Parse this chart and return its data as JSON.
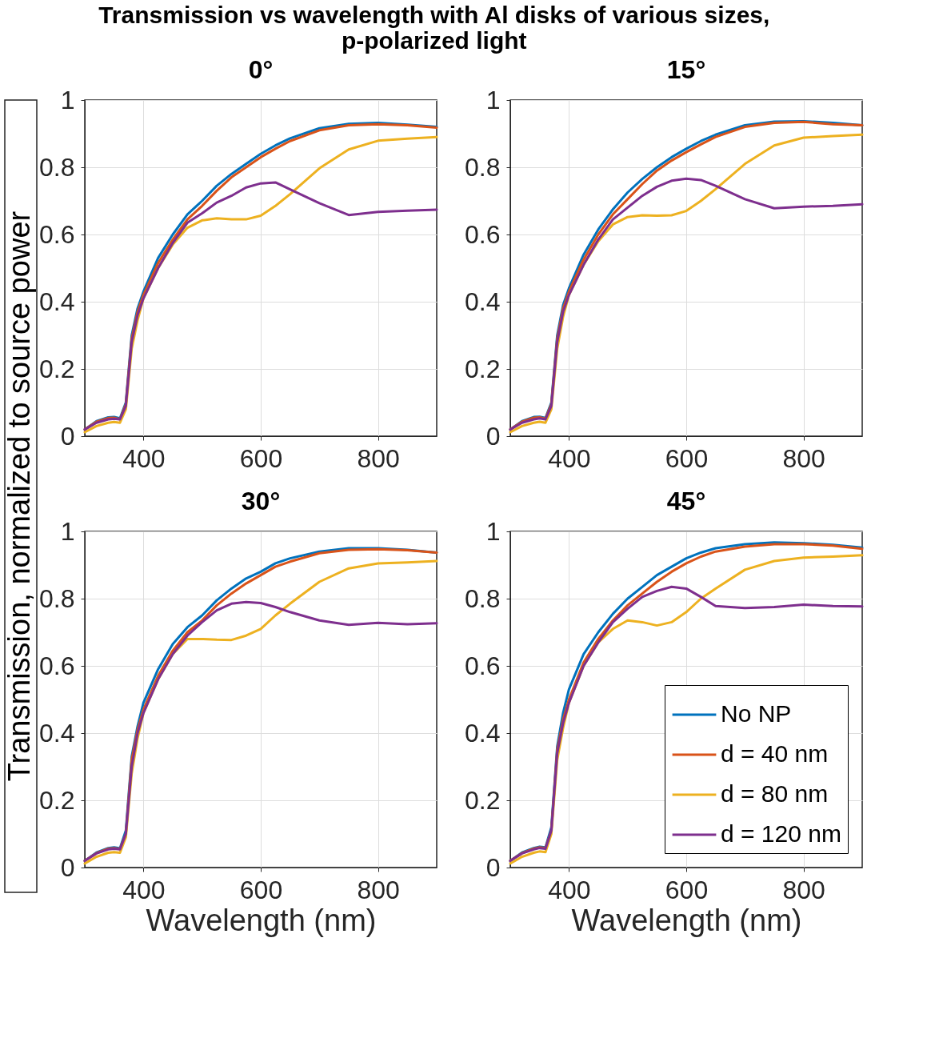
{
  "chart_data": [
    {
      "type": "line",
      "title": "0°",
      "annotations": [
        "Transmission vs wavelength with Al disks of various sizes, p-polarized light"
      ],
      "ylabel": "Transmission, normalized to source power",
      "xlim": [
        300,
        900
      ],
      "xticks": [
        400,
        600,
        800
      ],
      "ylim": [
        0,
        1
      ],
      "yticks": [
        0,
        0.2,
        0.4,
        0.6,
        0.8,
        1
      ],
      "grid": true,
      "x": [
        300,
        320,
        340,
        350,
        360,
        370,
        380,
        390,
        400,
        425,
        450,
        475,
        500,
        525,
        550,
        575,
        600,
        625,
        650,
        700,
        750,
        800,
        850,
        900
      ],
      "series": [
        {
          "color": "#0072bd",
          "values": [
            0.02,
            0.045,
            0.056,
            0.057,
            0.053,
            0.1,
            0.3,
            0.38,
            0.43,
            0.53,
            0.6,
            0.66,
            0.7,
            0.745,
            0.78,
            0.81,
            0.84,
            0.865,
            0.886,
            0.916,
            0.929,
            0.932,
            0.927,
            0.92
          ]
        },
        {
          "color": "#d95319",
          "values": [
            0.02,
            0.043,
            0.054,
            0.055,
            0.05,
            0.095,
            0.29,
            0.37,
            0.42,
            0.515,
            0.585,
            0.645,
            0.685,
            0.73,
            0.77,
            0.8,
            0.83,
            0.855,
            0.878,
            0.91,
            0.925,
            0.928,
            0.925,
            0.918
          ]
        },
        {
          "color": "#edb120",
          "values": [
            0.012,
            0.03,
            0.04,
            0.042,
            0.04,
            0.08,
            0.26,
            0.345,
            0.41,
            0.5,
            0.57,
            0.62,
            0.642,
            0.648,
            0.645,
            0.645,
            0.656,
            0.685,
            0.72,
            0.797,
            0.853,
            0.879,
            0.885,
            0.89
          ]
        },
        {
          "color": "#7e2f8e",
          "values": [
            0.02,
            0.04,
            0.05,
            0.052,
            0.05,
            0.09,
            0.28,
            0.36,
            0.41,
            0.5,
            0.575,
            0.635,
            0.663,
            0.695,
            0.715,
            0.74,
            0.752,
            0.755,
            0.734,
            0.693,
            0.658,
            0.667,
            0.671,
            0.674
          ]
        }
      ]
    },
    {
      "type": "line",
      "title": "15°",
      "xlim": [
        300,
        900
      ],
      "xticks": [
        400,
        600,
        800
      ],
      "ylim": [
        0,
        1
      ],
      "yticks": [
        0,
        0.2,
        0.4,
        0.6,
        0.8,
        1
      ],
      "grid": true,
      "x": [
        300,
        320,
        340,
        350,
        360,
        370,
        380,
        390,
        400,
        425,
        450,
        475,
        500,
        525,
        550,
        575,
        600,
        625,
        650,
        700,
        750,
        800,
        850,
        900
      ],
      "series": [
        {
          "color": "#0072bd",
          "values": [
            0.02,
            0.045,
            0.057,
            0.058,
            0.054,
            0.1,
            0.3,
            0.39,
            0.44,
            0.54,
            0.615,
            0.675,
            0.725,
            0.765,
            0.8,
            0.83,
            0.855,
            0.878,
            0.897,
            0.925,
            0.936,
            0.937,
            0.932,
            0.925
          ]
        },
        {
          "color": "#d95319",
          "values": [
            0.02,
            0.043,
            0.055,
            0.056,
            0.052,
            0.095,
            0.29,
            0.38,
            0.43,
            0.525,
            0.6,
            0.66,
            0.705,
            0.75,
            0.79,
            0.82,
            0.845,
            0.868,
            0.89,
            0.92,
            0.932,
            0.935,
            0.928,
            0.925
          ]
        },
        {
          "color": "#edb120",
          "values": [
            0.012,
            0.03,
            0.04,
            0.043,
            0.04,
            0.08,
            0.26,
            0.355,
            0.42,
            0.51,
            0.58,
            0.63,
            0.652,
            0.657,
            0.656,
            0.657,
            0.67,
            0.7,
            0.735,
            0.81,
            0.865,
            0.888,
            0.893,
            0.897
          ]
        },
        {
          "color": "#7e2f8e",
          "values": [
            0.02,
            0.04,
            0.05,
            0.053,
            0.05,
            0.09,
            0.28,
            0.37,
            0.42,
            0.51,
            0.585,
            0.645,
            0.68,
            0.715,
            0.742,
            0.76,
            0.766,
            0.762,
            0.745,
            0.705,
            0.678,
            0.683,
            0.685,
            0.69
          ]
        }
      ]
    },
    {
      "type": "line",
      "title": "30°",
      "xlabel": "Wavelength (nm)",
      "xlim": [
        300,
        900
      ],
      "xticks": [
        400,
        600,
        800
      ],
      "ylim": [
        0,
        1
      ],
      "yticks": [
        0,
        0.2,
        0.4,
        0.6,
        0.8,
        1
      ],
      "grid": true,
      "x": [
        300,
        320,
        340,
        350,
        360,
        370,
        380,
        390,
        400,
        425,
        450,
        475,
        500,
        525,
        550,
        575,
        600,
        625,
        650,
        700,
        750,
        800,
        850,
        900
      ],
      "series": [
        {
          "color": "#0072bd",
          "values": [
            0.02,
            0.045,
            0.058,
            0.06,
            0.057,
            0.11,
            0.33,
            0.42,
            0.49,
            0.59,
            0.665,
            0.715,
            0.75,
            0.795,
            0.83,
            0.86,
            0.88,
            0.905,
            0.92,
            0.94,
            0.95,
            0.95,
            0.945,
            0.937
          ]
        },
        {
          "color": "#d95319",
          "values": [
            0.02,
            0.043,
            0.056,
            0.058,
            0.055,
            0.1,
            0.32,
            0.41,
            0.47,
            0.57,
            0.645,
            0.7,
            0.735,
            0.78,
            0.815,
            0.845,
            0.87,
            0.895,
            0.91,
            0.935,
            0.945,
            0.947,
            0.944,
            0.937
          ]
        },
        {
          "color": "#edb120",
          "values": [
            0.012,
            0.032,
            0.044,
            0.046,
            0.044,
            0.09,
            0.28,
            0.385,
            0.46,
            0.56,
            0.635,
            0.68,
            0.68,
            0.678,
            0.677,
            0.69,
            0.71,
            0.75,
            0.785,
            0.85,
            0.89,
            0.905,
            0.908,
            0.912
          ]
        },
        {
          "color": "#7e2f8e",
          "values": [
            0.02,
            0.042,
            0.054,
            0.056,
            0.054,
            0.1,
            0.3,
            0.4,
            0.46,
            0.56,
            0.635,
            0.69,
            0.73,
            0.765,
            0.785,
            0.79,
            0.787,
            0.775,
            0.76,
            0.735,
            0.722,
            0.728,
            0.724,
            0.727
          ]
        }
      ]
    },
    {
      "type": "line",
      "title": "45°",
      "xlabel": "Wavelength (nm)",
      "xlim": [
        300,
        900
      ],
      "xticks": [
        400,
        600,
        800
      ],
      "ylim": [
        0,
        1
      ],
      "yticks": [
        0,
        0.2,
        0.4,
        0.6,
        0.8,
        1
      ],
      "grid": true,
      "legend": "bottom right",
      "x": [
        300,
        320,
        340,
        350,
        360,
        370,
        380,
        390,
        400,
        425,
        450,
        475,
        500,
        525,
        550,
        575,
        600,
        625,
        650,
        700,
        750,
        800,
        850,
        900
      ],
      "series": [
        {
          "name": "No NP",
          "color": "#0072bd",
          "values": [
            0.02,
            0.045,
            0.058,
            0.062,
            0.06,
            0.12,
            0.36,
            0.46,
            0.53,
            0.635,
            0.7,
            0.755,
            0.8,
            0.835,
            0.87,
            0.895,
            0.92,
            0.937,
            0.95,
            0.962,
            0.967,
            0.965,
            0.96,
            0.952
          ]
        },
        {
          "name": "d = 40 nm",
          "color": "#d95319",
          "values": [
            0.02,
            0.043,
            0.056,
            0.06,
            0.058,
            0.11,
            0.35,
            0.44,
            0.5,
            0.61,
            0.68,
            0.735,
            0.78,
            0.815,
            0.85,
            0.88,
            0.905,
            0.925,
            0.94,
            0.955,
            0.962,
            0.962,
            0.958,
            0.948
          ]
        },
        {
          "name": "d = 80 nm",
          "color": "#edb120",
          "values": [
            0.012,
            0.032,
            0.044,
            0.048,
            0.046,
            0.1,
            0.32,
            0.415,
            0.49,
            0.6,
            0.67,
            0.71,
            0.735,
            0.73,
            0.72,
            0.73,
            0.76,
            0.8,
            0.83,
            0.886,
            0.912,
            0.922,
            0.925,
            0.929
          ]
        },
        {
          "name": "d = 120 nm",
          "color": "#7e2f8e",
          "values": [
            0.02,
            0.042,
            0.054,
            0.058,
            0.056,
            0.11,
            0.34,
            0.43,
            0.49,
            0.6,
            0.67,
            0.73,
            0.77,
            0.805,
            0.823,
            0.835,
            0.83,
            0.805,
            0.778,
            0.772,
            0.775,
            0.782,
            0.778,
            0.777
          ]
        }
      ]
    }
  ]
}
